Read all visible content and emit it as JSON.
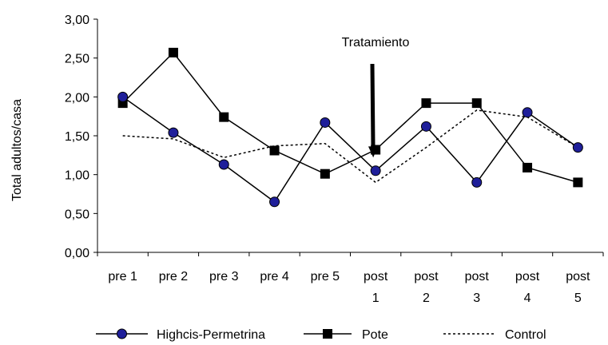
{
  "chart_data": {
    "type": "line",
    "ylabel": "Total adultos/casa",
    "xlabel": "",
    "ylim": [
      0,
      3
    ],
    "y_ticks": [
      "0,00",
      "0,50",
      "1,00",
      "1,50",
      "2,00",
      "2,50",
      "3,00"
    ],
    "y_tick_values": [
      0,
      0.5,
      1,
      1.5,
      2,
      2.5,
      3
    ],
    "categories": [
      [
        "pre 1"
      ],
      [
        "pre 2"
      ],
      [
        "pre 3"
      ],
      [
        "pre 4"
      ],
      [
        "pre 5"
      ],
      [
        "post",
        "1"
      ],
      [
        "post",
        "2"
      ],
      [
        "post",
        "3"
      ],
      [
        "post",
        "4"
      ],
      [
        "post",
        "5"
      ]
    ],
    "grid": false,
    "legend_position": "bottom",
    "annotation": {
      "text": "Tratamiento",
      "arrow_at_category_index": 5,
      "arrow_target_value": 1.22
    },
    "series": [
      {
        "name": "Highcis-Permetrina",
        "marker": "circle",
        "line": "solid",
        "color": "#000000",
        "marker_fill": "#1f1f9a",
        "values": [
          2.0,
          1.54,
          1.13,
          0.65,
          1.67,
          1.05,
          1.62,
          0.9,
          1.8,
          1.35
        ]
      },
      {
        "name": "Pote",
        "marker": "square",
        "line": "solid",
        "color": "#000000",
        "marker_fill": "#000000",
        "values": [
          1.92,
          2.57,
          1.74,
          1.31,
          1.01,
          1.32,
          1.92,
          1.92,
          1.09,
          0.9
        ]
      },
      {
        "name": "Control",
        "marker": "none",
        "line": "dotted",
        "color": "#000000",
        "values": [
          1.5,
          1.46,
          1.22,
          1.37,
          1.4,
          0.9,
          1.35,
          1.83,
          1.74,
          1.35
        ]
      }
    ]
  }
}
